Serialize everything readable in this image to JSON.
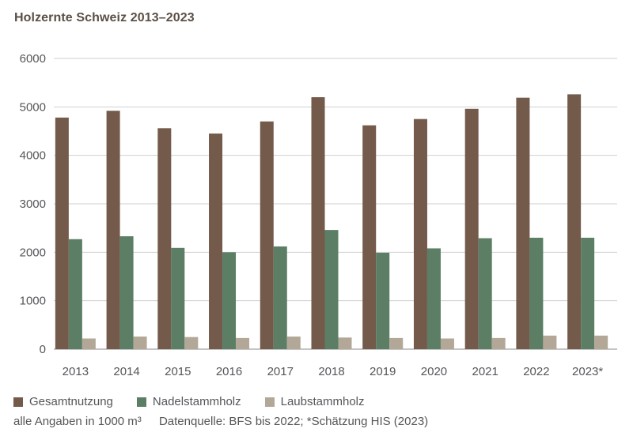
{
  "chart_data": {
    "type": "bar",
    "title": "Holzernte Schweiz 2013–2023",
    "categories": [
      "2013",
      "2014",
      "2015",
      "2016",
      "2017",
      "2018",
      "2019",
      "2020",
      "2021",
      "2022",
      "2023*"
    ],
    "series": [
      {
        "name": "Gesamtnutzung",
        "color": "#735a4a",
        "values": [
          4780,
          4920,
          4560,
          4450,
          4700,
          5200,
          4620,
          4750,
          4960,
          5190,
          5260
        ]
      },
      {
        "name": "Nadelstammholz",
        "color": "#5b7e65",
        "values": [
          2270,
          2330,
          2090,
          2000,
          2120,
          2460,
          1990,
          2080,
          2290,
          2300,
          2300
        ]
      },
      {
        "name": "Laubstammholz",
        "color": "#b3a898",
        "values": [
          220,
          260,
          250,
          230,
          260,
          240,
          230,
          220,
          230,
          280,
          280
        ]
      }
    ],
    "ylim": [
      0,
      6000
    ],
    "yticks": [
      0,
      1000,
      2000,
      3000,
      4000,
      5000,
      6000
    ],
    "grid": true,
    "legend": "bottom"
  },
  "footnote": {
    "units": "alle Angaben in 1000 m³",
    "source": "Datenquelle: BFS bis 2022; *Schätzung HIS (2023)"
  }
}
